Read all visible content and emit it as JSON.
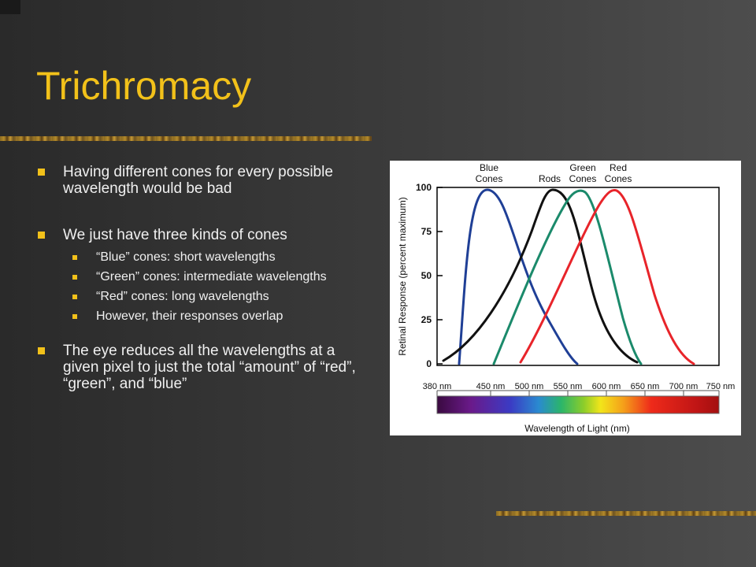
{
  "slide": {
    "title": "Trichromacy",
    "bullets": [
      {
        "text": "Having different cones for every possible wavelength would be bad"
      },
      {
        "text": "We just have three kinds of cones"
      },
      {
        "text": "“Blue” cones: short wavelengths"
      },
      {
        "text": "“Green” cones: intermediate wavelengths"
      },
      {
        "text": "“Red” cones: long wavelengths"
      },
      {
        "text": "However, their responses overlap"
      },
      {
        "text": "The eye reduces all the wavelengths at a given pixel to just the total “amount” of “red”, “green”, and “blue”"
      }
    ]
  },
  "figure": {
    "curve_labels": {
      "blue_line1": "Blue",
      "blue_line2": "Cones",
      "rods": "Rods",
      "green_line1": "Green",
      "green_line2": "Cones",
      "red_line1": "Red",
      "red_line2": "Cones"
    },
    "y_axis_label": "Retinal Response (percent maximum)",
    "y_ticks": [
      "100",
      "75",
      "50",
      "25",
      "0"
    ],
    "x_ticks": [
      "380 nm",
      "450 nm",
      "500 nm",
      "550 nm",
      "600 nm",
      "650 nm",
      "700 nm",
      "750 nm"
    ],
    "x_axis_label": "Wavelength of Light (nm)",
    "colors": {
      "blue": "#1f3f96",
      "rods": "#111111",
      "green": "#1b8a6b",
      "red": "#e8242a"
    }
  }
}
